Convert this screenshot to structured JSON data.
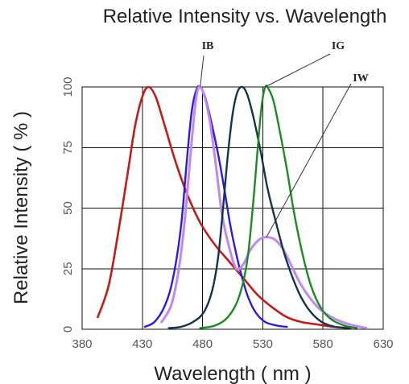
{
  "chart_data": {
    "type": "line",
    "title": "Relative Intensity vs. Wavelength",
    "xlabel": "Wavelength ( nm )",
    "ylabel": "Relative Intensity ( % )",
    "xlim": [
      380,
      630
    ],
    "ylim": [
      0,
      100
    ],
    "xticks": [
      "380",
      "430",
      "480",
      "530",
      "580",
      "630"
    ],
    "yticks": [
      "0",
      "25",
      "50",
      "75",
      "100"
    ],
    "grid": true,
    "series": [
      {
        "key": "red",
        "name": "",
        "color": "#c41a1a",
        "stroke_width": 2.6,
        "points": [
          [
            393,
            5
          ],
          [
            402,
            18
          ],
          [
            410,
            40
          ],
          [
            418,
            65
          ],
          [
            424,
            84
          ],
          [
            430,
            96
          ],
          [
            435,
            100
          ],
          [
            441,
            96
          ],
          [
            448,
            85
          ],
          [
            457,
            70
          ],
          [
            467,
            56
          ],
          [
            478,
            44
          ],
          [
            490,
            35
          ],
          [
            502,
            28
          ],
          [
            514,
            21
          ],
          [
            526,
            14
          ],
          [
            538,
            9
          ],
          [
            550,
            5
          ],
          [
            562,
            3
          ],
          [
            575,
            2
          ],
          [
            589,
            1
          ],
          [
            603,
            0.5
          ]
        ]
      },
      {
        "key": "ib",
        "name": "IB",
        "color": "#2a1be0",
        "stroke_width": 2.4,
        "points": [
          [
            432,
            1
          ],
          [
            440,
            3
          ],
          [
            448,
            9
          ],
          [
            455,
            20
          ],
          [
            462,
            42
          ],
          [
            467,
            70
          ],
          [
            471,
            90
          ],
          [
            475,
            99
          ],
          [
            478,
            100
          ],
          [
            482,
            96
          ],
          [
            487,
            86
          ],
          [
            493,
            72
          ],
          [
            498,
            58
          ],
          [
            503,
            43
          ],
          [
            508,
            31
          ],
          [
            513,
            21
          ],
          [
            518,
            13
          ],
          [
            524,
            7
          ],
          [
            532,
            3
          ],
          [
            542,
            1.5
          ],
          [
            550,
            1
          ]
        ]
      },
      {
        "key": "iw",
        "name": "IW",
        "color": "#c089f0",
        "stroke_width": 3.0,
        "points": [
          [
            446,
            3
          ],
          [
            454,
            10
          ],
          [
            460,
            24
          ],
          [
            465,
            44
          ],
          [
            470,
            72
          ],
          [
            474,
            93
          ],
          [
            477,
            100
          ],
          [
            481,
            97
          ],
          [
            486,
            86
          ],
          [
            491,
            68
          ],
          [
            496,
            48
          ],
          [
            502,
            34
          ],
          [
            508,
            25
          ],
          [
            514,
            27
          ],
          [
            520,
            33
          ],
          [
            527,
            37
          ],
          [
            533,
            38
          ],
          [
            540,
            37
          ],
          [
            547,
            33
          ],
          [
            554,
            26
          ],
          [
            561,
            19
          ],
          [
            569,
            13
          ],
          [
            578,
            8
          ],
          [
            587,
            5
          ],
          [
            596,
            3
          ],
          [
            606,
            1.5
          ],
          [
            616,
            0.5
          ]
        ]
      },
      {
        "key": "teal",
        "name": "",
        "color": "#13344f",
        "stroke_width": 2.4,
        "points": [
          [
            452,
            0.5
          ],
          [
            462,
            1
          ],
          [
            472,
            3
          ],
          [
            481,
            7
          ],
          [
            488,
            16
          ],
          [
            493,
            30
          ],
          [
            497,
            50
          ],
          [
            501,
            72
          ],
          [
            505,
            89
          ],
          [
            509,
            98
          ],
          [
            513,
            100
          ],
          [
            517,
            97
          ],
          [
            522,
            88
          ],
          [
            528,
            74
          ],
          [
            534,
            58
          ],
          [
            541,
            44
          ],
          [
            548,
            31
          ],
          [
            555,
            21
          ],
          [
            562,
            13
          ],
          [
            570,
            7
          ],
          [
            579,
            3
          ],
          [
            590,
            1
          ],
          [
            602,
            0.5
          ]
        ]
      },
      {
        "key": "ig",
        "name": "IG",
        "color": "#1d8a26",
        "stroke_width": 2.4,
        "points": [
          [
            478,
            0.5
          ],
          [
            490,
            1.5
          ],
          [
            501,
            5
          ],
          [
            510,
            13
          ],
          [
            517,
            28
          ],
          [
            522,
            52
          ],
          [
            526,
            76
          ],
          [
            529,
            92
          ],
          [
            532,
            100
          ],
          [
            535,
            99
          ],
          [
            539,
            94
          ],
          [
            544,
            82
          ],
          [
            550,
            66
          ],
          [
            556,
            48
          ],
          [
            563,
            31
          ],
          [
            570,
            18
          ],
          [
            578,
            9
          ],
          [
            587,
            4
          ],
          [
            598,
            1.5
          ],
          [
            608,
            0.5
          ]
        ]
      }
    ],
    "annotations": [
      {
        "key": "ib",
        "text": "IB",
        "series": "ib"
      },
      {
        "key": "ig",
        "text": "IG",
        "series": "ig"
      },
      {
        "key": "iw",
        "text": "IW",
        "series": "iw"
      }
    ]
  }
}
